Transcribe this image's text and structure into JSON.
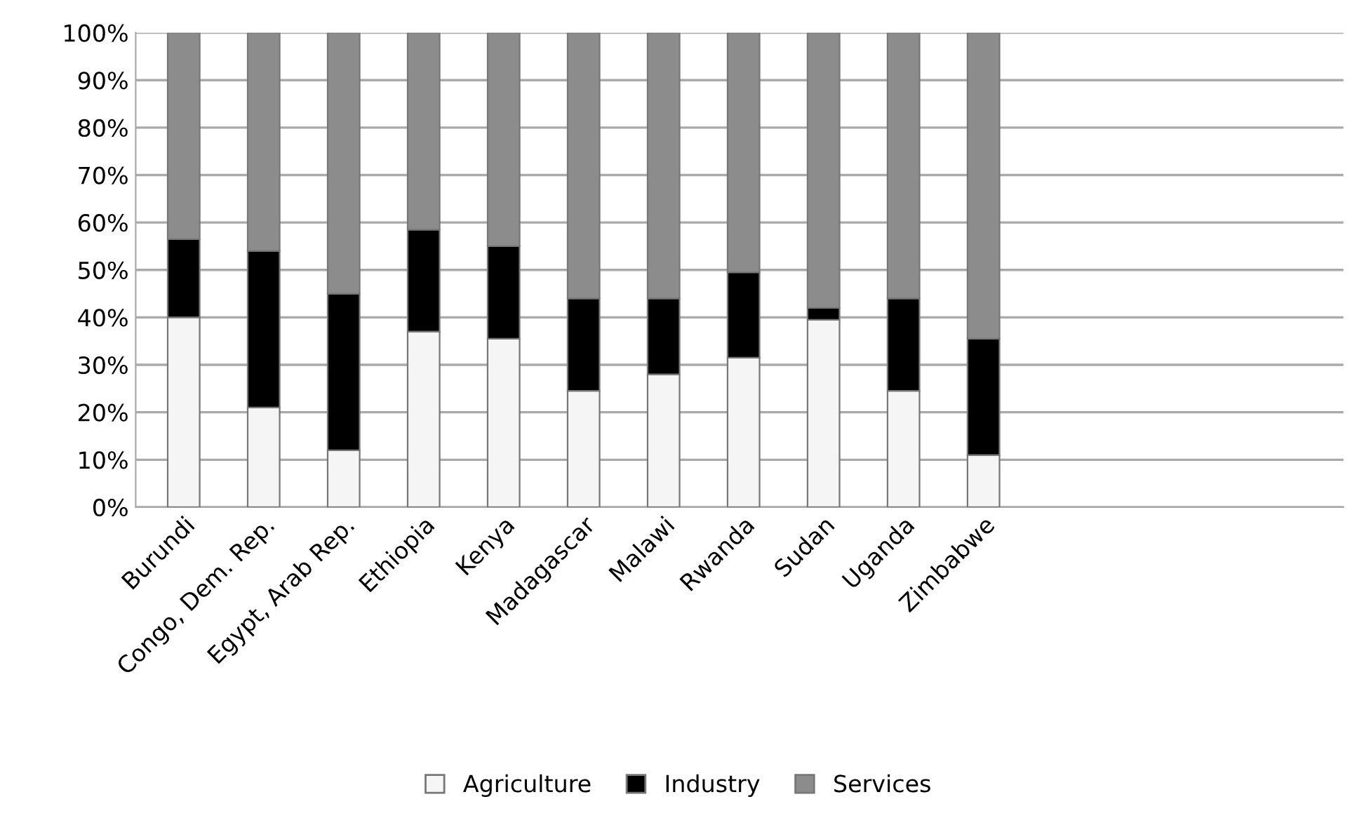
{
  "chart_data": {
    "type": "bar",
    "stacked": true,
    "categories": [
      "Burundi",
      "Congo, Dem. Rep.",
      "Egypt, Arab Rep.",
      "Ethiopia",
      "Kenya",
      "Madagascar",
      "Malawi",
      "Rwanda",
      "Sudan",
      "Uganda",
      "Zimbabwe"
    ],
    "series": [
      {
        "name": "Agriculture",
        "color": "#f5f5f5",
        "values": [
          40,
          21,
          12,
          37,
          35.5,
          24.5,
          28,
          31.5,
          39.5,
          24.5,
          11
        ]
      },
      {
        "name": "Industry",
        "color": "#000000",
        "values": [
          16.5,
          33,
          33,
          21.5,
          19.5,
          19.5,
          16,
          18,
          2.5,
          19.5,
          24.5
        ]
      },
      {
        "name": "Services",
        "color": "#8c8c8c",
        "values": [
          43.5,
          46,
          55,
          41.5,
          45,
          56,
          56,
          50.5,
          58,
          56,
          64.5
        ]
      }
    ],
    "ylim": [
      0,
      100
    ],
    "yticks": [
      {
        "value": 0,
        "label": "0%"
      },
      {
        "value": 10,
        "label": "10%"
      },
      {
        "value": 20,
        "label": "20%"
      },
      {
        "value": 30,
        "label": "30%"
      },
      {
        "value": 40,
        "label": "40%"
      },
      {
        "value": 50,
        "label": "50%"
      },
      {
        "value": 60,
        "label": "60%"
      },
      {
        "value": 70,
        "label": "70%"
      },
      {
        "value": 80,
        "label": "80%"
      },
      {
        "value": 90,
        "label": "90%"
      },
      {
        "value": 100,
        "label": "100%"
      }
    ],
    "grid": "y",
    "legend": "bottom"
  }
}
